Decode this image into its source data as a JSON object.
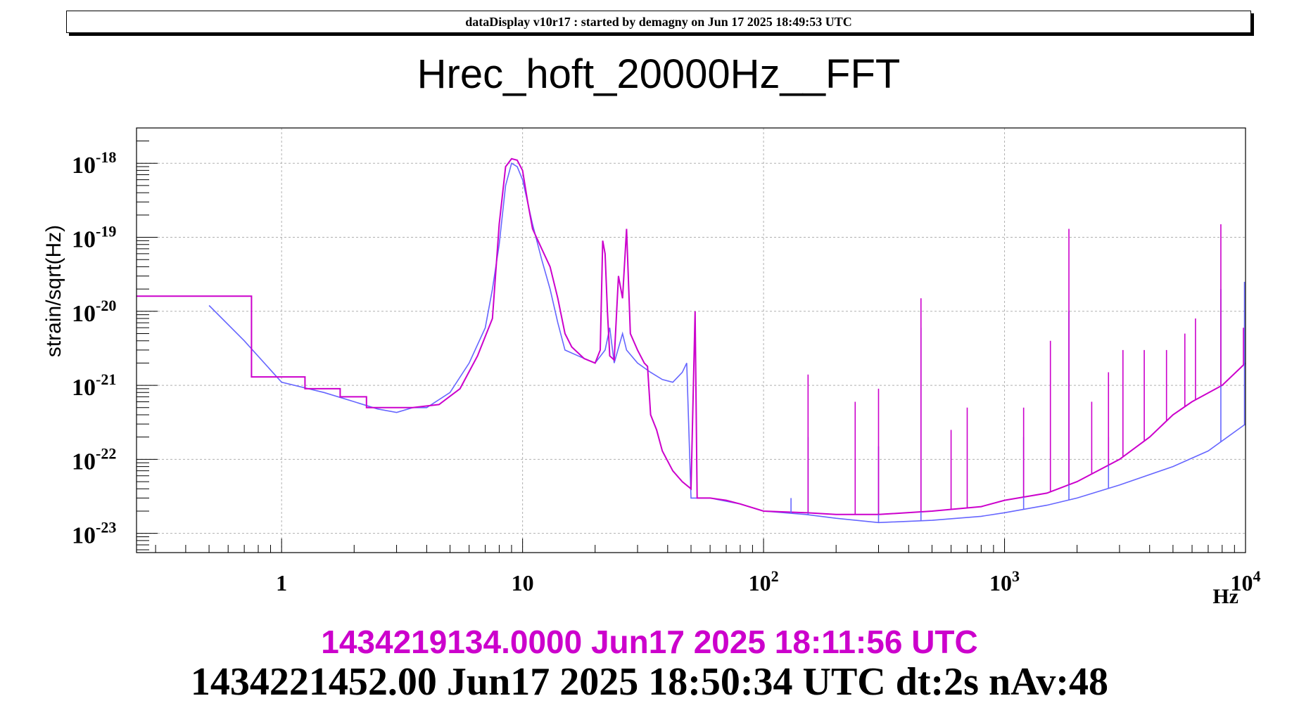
{
  "banner": "dataDisplay v10r17 : started by demagny on Jun 17 2025 18:49:53 UTC",
  "colors": {
    "reference": "#cc00cc",
    "current": "#6666ff",
    "grid": "#b0b0b0",
    "axis": "#000000"
  },
  "chart_data": {
    "type": "line",
    "title": "Hrec_hoft_20000Hz__FFT",
    "xlabel": "Hz",
    "ylabel": "strain/sqrt(Hz)",
    "xscale": "log",
    "yscale": "log",
    "xlim": [
      0.25,
      10000
    ],
    "ylim": [
      5.5e-24,
      3e-18
    ],
    "grid": true,
    "x_ticks": [
      {
        "value": 1,
        "label": "1"
      },
      {
        "value": 10,
        "label": "10"
      },
      {
        "value": 100,
        "base": "10",
        "exp": "2"
      },
      {
        "value": 1000,
        "base": "10",
        "exp": "3"
      },
      {
        "value": 10000,
        "base": "10",
        "exp": "4"
      }
    ],
    "y_ticks": [
      {
        "value": 1e-18,
        "base": "10",
        "exp": "-18"
      },
      {
        "value": 1e-19,
        "base": "10",
        "exp": "-19"
      },
      {
        "value": 1e-20,
        "base": "10",
        "exp": "-20"
      },
      {
        "value": 1e-21,
        "base": "10",
        "exp": "-21"
      },
      {
        "value": 1e-22,
        "base": "10",
        "exp": "-22"
      },
      {
        "value": 1e-23,
        "base": "10",
        "exp": "-23"
      }
    ],
    "series": [
      {
        "id": "reference",
        "label": "1434219134.0000 Jun17 2025 18:11:56 UTC",
        "color": "#cc00cc",
        "step": true,
        "points": [
          [
            0.25,
            1.6e-20
          ],
          [
            0.75,
            1.6e-20
          ],
          [
            0.75,
            1.3e-21
          ],
          [
            1.25,
            1.3e-21
          ],
          [
            1.25,
            9e-22
          ],
          [
            1.75,
            9e-22
          ],
          [
            1.75,
            7e-22
          ],
          [
            2.25,
            7e-22
          ],
          [
            2.25,
            5e-22
          ],
          [
            3.5,
            5e-22
          ],
          [
            4.5,
            5.5e-22
          ],
          [
            5.5,
            9e-22
          ],
          [
            6.5,
            2.5e-21
          ],
          [
            7.5,
            8e-21
          ],
          [
            8,
            1.5e-19
          ],
          [
            8.5,
            9e-19
          ],
          [
            9,
            1.15e-18
          ],
          [
            9.5,
            1.1e-18
          ],
          [
            10,
            8e-19
          ],
          [
            10.5,
            3e-19
          ],
          [
            11,
            1.3e-19
          ],
          [
            12,
            7e-20
          ],
          [
            13,
            4e-20
          ],
          [
            14,
            1.5e-20
          ],
          [
            15,
            5e-21
          ],
          [
            16,
            3.3e-21
          ],
          [
            18,
            2.3e-21
          ],
          [
            20,
            2e-21
          ],
          [
            21,
            3e-21
          ],
          [
            21.5,
            9e-20
          ],
          [
            22,
            6e-20
          ],
          [
            22.5,
            1e-20
          ],
          [
            23,
            2.5e-21
          ],
          [
            24,
            2.2e-21
          ],
          [
            25,
            3e-20
          ],
          [
            26,
            1.5e-20
          ],
          [
            27,
            1.3e-19
          ],
          [
            28,
            5e-21
          ],
          [
            30,
            3e-21
          ],
          [
            32,
            2e-21
          ],
          [
            33,
            1.8e-21
          ],
          [
            34,
            4e-22
          ],
          [
            36,
            2.5e-22
          ],
          [
            38,
            1.3e-22
          ],
          [
            42,
            7e-23
          ],
          [
            46,
            5e-23
          ],
          [
            50,
            4e-23
          ],
          [
            52,
            1e-20
          ],
          [
            53,
            3e-23
          ],
          [
            60,
            3e-23
          ],
          [
            70,
            2.8e-23
          ],
          [
            80,
            2.5e-23
          ],
          [
            100,
            2e-23
          ],
          [
            150,
            1.9e-23
          ],
          [
            200,
            1.8e-23
          ],
          [
            300,
            1.8e-23
          ],
          [
            500,
            2e-23
          ],
          [
            800,
            2.3e-23
          ],
          [
            1000,
            2.8e-23
          ],
          [
            1500,
            3.5e-23
          ],
          [
            2000,
            5e-23
          ],
          [
            3000,
            1e-22
          ],
          [
            4000,
            2e-22
          ],
          [
            5000,
            4e-22
          ],
          [
            6000,
            6e-22
          ],
          [
            8000,
            1e-21
          ],
          [
            10000,
            2e-21
          ]
        ]
      },
      {
        "id": "current",
        "label": "1434221452.00 Jun17 2025 18:50:34 UTC dt:2s nAv:48",
        "color": "#6666ff",
        "step": false,
        "points": [
          [
            0.5,
            1.2e-20
          ],
          [
            0.7,
            4e-21
          ],
          [
            1,
            1.1e-21
          ],
          [
            1.5,
            8e-22
          ],
          [
            2,
            6e-22
          ],
          [
            2.5,
            4.8e-22
          ],
          [
            3,
            4.3e-22
          ],
          [
            3.5,
            5e-22
          ],
          [
            4,
            5e-22
          ],
          [
            5,
            8e-22
          ],
          [
            6,
            2e-21
          ],
          [
            7,
            6e-21
          ],
          [
            7.5,
            2e-20
          ],
          [
            8,
            8e-20
          ],
          [
            8.5,
            5e-19
          ],
          [
            9,
            1e-18
          ],
          [
            9.5,
            9e-19
          ],
          [
            10,
            6e-19
          ],
          [
            11,
            1.5e-19
          ],
          [
            12,
            5e-20
          ],
          [
            13,
            2e-20
          ],
          [
            14,
            7e-21
          ],
          [
            15,
            3e-21
          ],
          [
            17,
            2.5e-21
          ],
          [
            20,
            2e-21
          ],
          [
            22,
            3e-21
          ],
          [
            23,
            6e-21
          ],
          [
            24,
            2e-21
          ],
          [
            26,
            5e-21
          ],
          [
            27,
            3e-21
          ],
          [
            30,
            2e-21
          ],
          [
            34,
            1.5e-21
          ],
          [
            38,
            1.2e-21
          ],
          [
            42,
            1.1e-21
          ],
          [
            46,
            1.5e-21
          ],
          [
            48,
            2e-21
          ],
          [
            50,
            3e-23
          ],
          [
            60,
            3e-23
          ],
          [
            80,
            2.5e-23
          ],
          [
            100,
            2e-23
          ],
          [
            150,
            1.8e-23
          ],
          [
            200,
            1.6e-23
          ],
          [
            300,
            1.4e-23
          ],
          [
            500,
            1.5e-23
          ],
          [
            800,
            1.7e-23
          ],
          [
            1000,
            1.9e-23
          ],
          [
            1500,
            2.4e-23
          ],
          [
            2000,
            3e-23
          ],
          [
            3000,
            4.5e-23
          ],
          [
            5000,
            8e-23
          ],
          [
            7000,
            1.3e-22
          ],
          [
            10000,
            3e-22
          ]
        ]
      }
    ],
    "reference_peaks": [
      [
        153,
        1.4e-21
      ],
      [
        240,
        6e-22
      ],
      [
        300,
        9e-22
      ],
      [
        450,
        1.5e-20
      ],
      [
        600,
        2.5e-22
      ],
      [
        700,
        5e-22
      ],
      [
        1200,
        5e-22
      ],
      [
        1550,
        4e-21
      ],
      [
        1850,
        1.3e-19
      ],
      [
        2300,
        6e-22
      ],
      [
        2700,
        1.5e-21
      ],
      [
        3100,
        3e-21
      ],
      [
        3800,
        3e-21
      ],
      [
        4700,
        3e-21
      ],
      [
        5600,
        5e-21
      ],
      [
        6200,
        8e-21
      ],
      [
        7900,
        1.5e-19
      ],
      [
        9800,
        6e-21
      ]
    ],
    "current_peaks": [
      [
        130,
        3e-23
      ],
      [
        153,
        2e-22
      ],
      [
        300,
        1.5e-22
      ],
      [
        450,
        6e-21
      ],
      [
        1200,
        2e-22
      ],
      [
        1850,
        1e-20
      ],
      [
        2700,
        2e-22
      ],
      [
        7900,
        2e-20
      ],
      [
        9900,
        2.5e-20
      ]
    ]
  },
  "footer": {
    "line1": "1434219134.0000 Jun17 2025 18:11:56 UTC",
    "line2": "1434221452.00 Jun17 2025 18:50:34 UTC dt:2s nAv:48"
  }
}
